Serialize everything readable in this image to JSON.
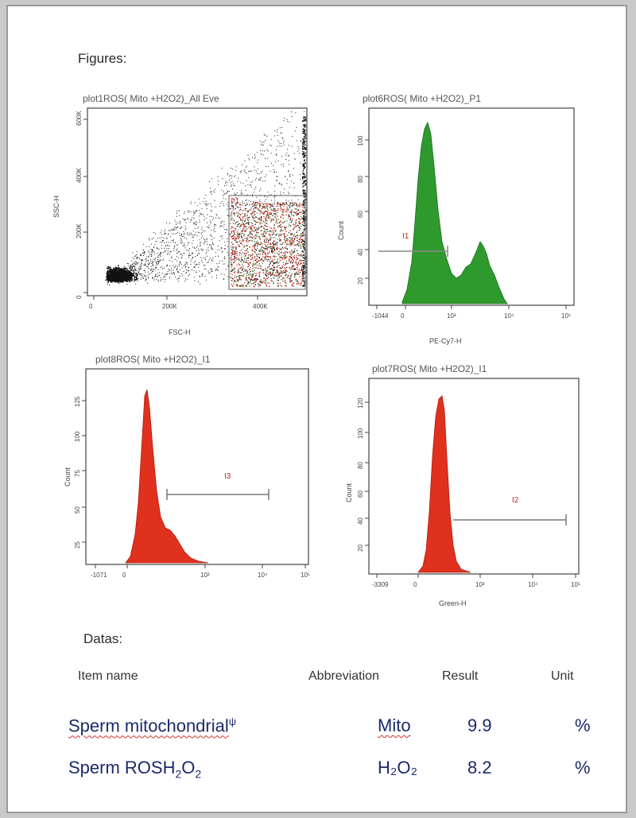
{
  "document": {
    "figures_heading": "Figures:",
    "datas_heading": "Datas:",
    "columns": {
      "item_name": "Item name",
      "abbreviation": "Abbreviation",
      "result": "Result",
      "unit": "Unit"
    },
    "rows": [
      {
        "name": "Sperm mitochondrial",
        "name_suffix": "ψ",
        "abbreviation": "Mito",
        "result": "9.9",
        "unit": "%"
      },
      {
        "name": "Sperm ROS",
        "name_formula_main": "H",
        "name_formula_sub1": "2",
        "name_formula_mid": "O",
        "name_formula_sub2": "2",
        "abbreviation": "H₂O₂",
        "result": "8.2",
        "unit": "%"
      }
    ]
  },
  "plots": {
    "scatter": {
      "title": "plot1ROS( Mito +H2O2)_All Eve",
      "xlabel": "FSC-H",
      "ylabel": "SSC-H",
      "xticks": [
        "0",
        "200K",
        "400K"
      ],
      "yticks": [
        "0",
        "200K",
        "400K",
        "600K"
      ],
      "gate_label": "P1",
      "colors": {
        "dots": "#111111",
        "gated_red": "#c8281e",
        "gated_green": "#3a8a2a",
        "gate_border": "#7a7a7a"
      }
    },
    "hist_green": {
      "title": "plot6ROS( Mito +H2O2)_P1",
      "xlabel": "PE-Cy7-H",
      "ylabel": "Count",
      "xticks": [
        "-1044",
        "0",
        "10³",
        "10⁴",
        "10⁵"
      ],
      "yticks": [
        "20",
        "40",
        "60",
        "80",
        "100"
      ],
      "gate_label": "I1",
      "colors": {
        "fill": "#2e9a2e"
      }
    },
    "hist_red1": {
      "title": "plot8ROS( Mito +H2O2)_I1",
      "xlabel": "",
      "ylabel": "Count",
      "xticks": [
        "-1071",
        "0",
        "10³",
        "10⁴",
        "10⁵"
      ],
      "yticks": [
        "25",
        "50",
        "75",
        "100",
        "125"
      ],
      "gate_label": "I3",
      "colors": {
        "fill": "#e0301e"
      }
    },
    "hist_red2": {
      "title": "plot7ROS( Mito +H2O2)_I1",
      "xlabel": "Green-H",
      "ylabel": "Count",
      "xticks": [
        "-3309",
        "0",
        "10³",
        "10⁴",
        "10⁵"
      ],
      "yticks": [
        "20",
        "40",
        "60",
        "80",
        "100",
        "120"
      ],
      "gate_label": "I2",
      "colors": {
        "fill": "#e0301e"
      }
    }
  }
}
